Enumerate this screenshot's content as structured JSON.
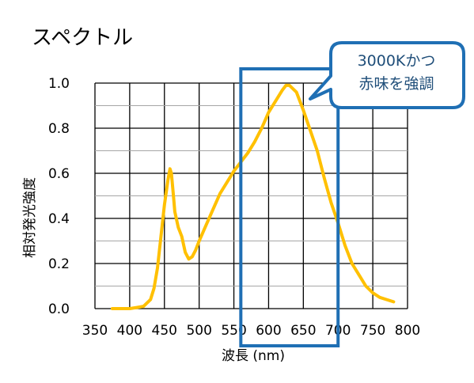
{
  "chart_data": {
    "type": "line",
    "title": "スペクトル",
    "xlabel": "波長 (nm)",
    "ylabel": "相対発光強度",
    "xlim": [
      350,
      800
    ],
    "ylim": [
      0,
      1.0
    ],
    "xticks": [
      "350",
      "400",
      "450",
      "500",
      "550",
      "600",
      "650",
      "700",
      "750",
      "800"
    ],
    "yticks": [
      "0.0",
      "0.2",
      "0.4",
      "0.6",
      "0.8",
      "1.0"
    ],
    "grid": true,
    "minor_grid": true,
    "series": [
      {
        "color": "#ffc000",
        "x": [
          375,
          400,
          410,
          420,
          430,
          435,
          440,
          445,
          450,
          455,
          458,
          460,
          463,
          465,
          470,
          475,
          480,
          485,
          490,
          495,
          500,
          510,
          520,
          530,
          540,
          550,
          560,
          570,
          580,
          590,
          600,
          610,
          620,
          625,
          630,
          640,
          650,
          660,
          670,
          680,
          690,
          700,
          710,
          720,
          730,
          740,
          750,
          760,
          770,
          780
        ],
        "y": [
          0.0,
          0.0,
          0.005,
          0.01,
          0.04,
          0.09,
          0.18,
          0.32,
          0.46,
          0.57,
          0.62,
          0.6,
          0.5,
          0.43,
          0.36,
          0.32,
          0.25,
          0.22,
          0.23,
          0.26,
          0.3,
          0.37,
          0.44,
          0.51,
          0.56,
          0.61,
          0.65,
          0.69,
          0.74,
          0.8,
          0.87,
          0.92,
          0.97,
          0.99,
          0.99,
          0.96,
          0.88,
          0.79,
          0.7,
          0.58,
          0.47,
          0.38,
          0.28,
          0.2,
          0.15,
          0.1,
          0.07,
          0.05,
          0.04,
          0.03
        ]
      }
    ],
    "highlight": {
      "x_range": [
        560,
        700
      ],
      "color": "#1f6fb4"
    },
    "annotation": {
      "lines": [
        "3000Kかつ",
        "赤味を強調"
      ],
      "border_color": "#1f6fb4"
    }
  }
}
